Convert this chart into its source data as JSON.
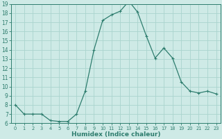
{
  "x": [
    0,
    1,
    2,
    3,
    4,
    5,
    6,
    7,
    8,
    9,
    10,
    11,
    12,
    13,
    14,
    15,
    16,
    17,
    18,
    19,
    20,
    21,
    22,
    23
  ],
  "y": [
    8,
    7,
    7,
    7,
    6.3,
    6.2,
    6.2,
    7,
    9.5,
    14,
    17.2,
    17.8,
    18.2,
    19.3,
    18.1,
    15.5,
    13.1,
    14.2,
    13.1,
    10.5,
    9.5,
    9.3,
    9.5,
    9.2
  ],
  "line_color": "#2e7d6e",
  "marker": "+",
  "marker_size": 3,
  "marker_lw": 0.8,
  "line_width": 0.9,
  "bg_color": "#ceeae6",
  "grid_color": "#aad4ce",
  "xlabel": "Humidex (Indice chaleur)",
  "ylim": [
    6,
    19
  ],
  "xlim_min": -0.5,
  "xlim_max": 23.5,
  "yticks": [
    6,
    7,
    8,
    9,
    10,
    11,
    12,
    13,
    14,
    15,
    16,
    17,
    18,
    19
  ],
  "xticks": [
    0,
    1,
    2,
    3,
    4,
    5,
    6,
    7,
    8,
    9,
    10,
    11,
    12,
    13,
    14,
    15,
    16,
    17,
    18,
    19,
    20,
    21,
    22,
    23
  ],
  "tick_color": "#2e7d6e",
  "ytick_fontsize": 5.5,
  "xtick_fontsize": 4.8,
  "xlabel_fontsize": 6.5
}
